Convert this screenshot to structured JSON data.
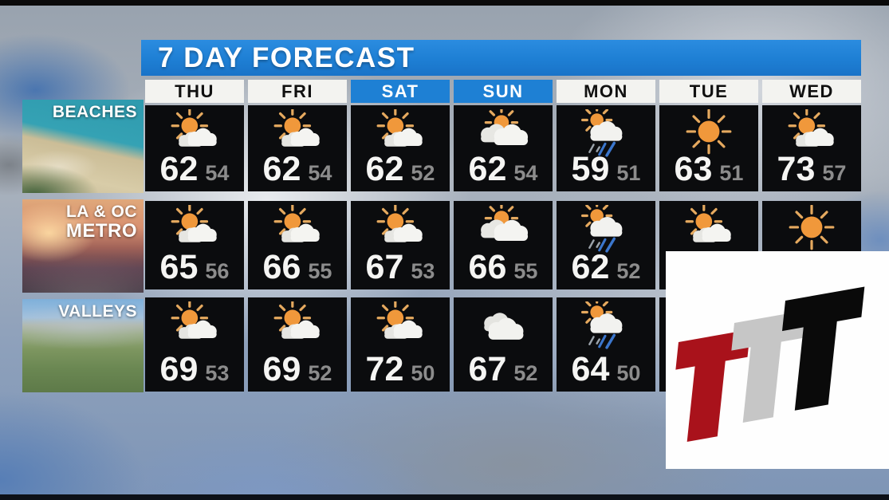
{
  "header": {
    "title": "7 DAY FORECAST"
  },
  "forecast": {
    "days": [
      {
        "label": "THU",
        "weekend": false
      },
      {
        "label": "FRI",
        "weekend": false
      },
      {
        "label": "SAT",
        "weekend": true
      },
      {
        "label": "SUN",
        "weekend": true
      },
      {
        "label": "MON",
        "weekend": false
      },
      {
        "label": "TUE",
        "weekend": false
      },
      {
        "label": "WED",
        "weekend": false
      }
    ],
    "regions": [
      {
        "name": "BEACHES",
        "label_lines": [
          "BEACHES"
        ],
        "cells": [
          {
            "icon": "partly",
            "hi": "62",
            "lo": "54"
          },
          {
            "icon": "partly",
            "hi": "62",
            "lo": "54"
          },
          {
            "icon": "partly",
            "hi": "62",
            "lo": "52"
          },
          {
            "icon": "mostly",
            "hi": "62",
            "lo": "54"
          },
          {
            "icon": "rain",
            "hi": "59",
            "lo": "51"
          },
          {
            "icon": "sunny",
            "hi": "63",
            "lo": "51"
          },
          {
            "icon": "partly",
            "hi": "73",
            "lo": "57"
          }
        ]
      },
      {
        "name": "LA & OC METRO",
        "label_lines": [
          "LA & OC",
          "METRO"
        ],
        "cells": [
          {
            "icon": "partly",
            "hi": "65",
            "lo": "56"
          },
          {
            "icon": "partly",
            "hi": "66",
            "lo": "55"
          },
          {
            "icon": "partly",
            "hi": "67",
            "lo": "53"
          },
          {
            "icon": "mostly",
            "hi": "66",
            "lo": "55"
          },
          {
            "icon": "rain",
            "hi": "62",
            "lo": "52"
          },
          {
            "icon": "partly",
            "hi": "",
            "lo": ""
          },
          {
            "icon": "sunny",
            "hi": "",
            "lo": ""
          }
        ]
      },
      {
        "name": "VALLEYS",
        "label_lines": [
          "VALLEYS"
        ],
        "cells": [
          {
            "icon": "partly",
            "hi": "69",
            "lo": "53"
          },
          {
            "icon": "partly",
            "hi": "69",
            "lo": "52"
          },
          {
            "icon": "partly",
            "hi": "72",
            "lo": "50"
          },
          {
            "icon": "cloudy",
            "hi": "67",
            "lo": "52"
          },
          {
            "icon": "rain",
            "hi": "64",
            "lo": "50"
          },
          {
            "icon": null,
            "hi": "",
            "lo": ""
          },
          {
            "icon": null,
            "hi": "",
            "lo": ""
          }
        ]
      }
    ]
  },
  "logo": {
    "letters": [
      "T",
      "T",
      "T"
    ],
    "colors": [
      "#A9121B",
      "#C6C6C6",
      "#0A0A0A"
    ]
  },
  "colors": {
    "banner_blue": "#1E80D4",
    "weekend_header_blue": "#1E80D4",
    "cell_black": "#0B0C0E",
    "high_temp": "#F5F5F3",
    "low_temp": "#8C8C8C",
    "sun_orange": "#F0983B",
    "rain_blue": "#3B76CC"
  },
  "chart_data": {
    "type": "table",
    "title": "7 DAY FORECAST",
    "columns": [
      "THU",
      "FRI",
      "SAT",
      "SUN",
      "MON",
      "TUE",
      "WED"
    ],
    "rows": [
      {
        "region": "BEACHES",
        "highs": [
          62,
          62,
          62,
          62,
          59,
          63,
          73
        ],
        "lows": [
          54,
          54,
          52,
          54,
          51,
          51,
          57
        ],
        "conditions": [
          "partly-cloudy",
          "partly-cloudy",
          "partly-cloudy",
          "mostly-cloudy",
          "rain-showers",
          "sunny",
          "partly-cloudy"
        ]
      },
      {
        "region": "LA & OC METRO",
        "highs": [
          65,
          66,
          67,
          66,
          62,
          null,
          null
        ],
        "lows": [
          56,
          55,
          53,
          55,
          52,
          null,
          null
        ],
        "conditions": [
          "partly-cloudy",
          "partly-cloudy",
          "partly-cloudy",
          "mostly-cloudy",
          "rain-showers",
          "partly-cloudy",
          "sunny"
        ]
      },
      {
        "region": "VALLEYS",
        "highs": [
          69,
          69,
          72,
          67,
          64,
          null,
          null
        ],
        "lows": [
          53,
          52,
          50,
          52,
          50,
          null,
          null
        ],
        "conditions": [
          "partly-cloudy",
          "partly-cloudy",
          "partly-cloudy",
          "cloudy",
          "rain-showers",
          null,
          null
        ]
      }
    ]
  }
}
